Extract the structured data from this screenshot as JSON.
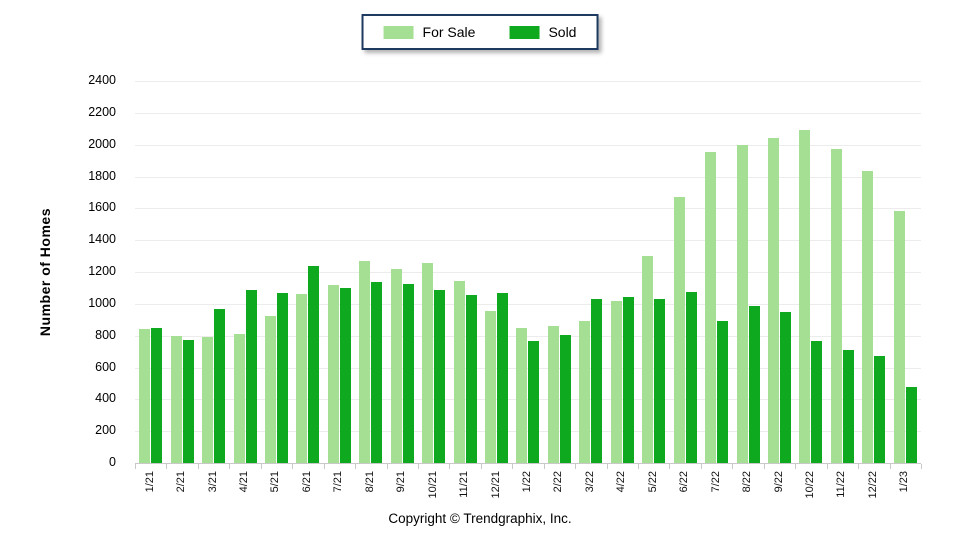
{
  "legend": {
    "items": [
      {
        "label": "For Sale",
        "color": "#a5df94"
      },
      {
        "label": "Sold",
        "color": "#0ea91e"
      }
    ]
  },
  "footer": {
    "copyright": "Copyright © Trendgraphix, Inc."
  },
  "colors": {
    "for_sale": "#a5df94",
    "sold": "#0ea91e",
    "gridline": "#ececec",
    "axis_line": "#c9c9c9",
    "legend_border": "#1f3a60"
  },
  "chart_data": {
    "type": "bar",
    "title": "",
    "xlabel": "",
    "ylabel": "Number of Homes",
    "ylim": [
      0,
      2400
    ],
    "y_tick_step": 200,
    "y_ticks": [
      0,
      200,
      400,
      600,
      800,
      1000,
      1200,
      1400,
      1600,
      1800,
      2000,
      2200,
      2400
    ],
    "grid": true,
    "legend_position": "top-center",
    "categories": [
      "1/21",
      "2/21",
      "3/21",
      "4/21",
      "5/21",
      "6/21",
      "7/21",
      "8/21",
      "9/21",
      "10/21",
      "11/21",
      "12/21",
      "1/22",
      "2/22",
      "3/22",
      "4/22",
      "5/22",
      "6/22",
      "7/22",
      "8/22",
      "9/22",
      "10/22",
      "11/22",
      "12/22",
      "1/23"
    ],
    "series": [
      {
        "name": "For Sale",
        "color": "#a5df94",
        "values": [
          845,
          795,
          790,
          810,
          925,
          1060,
          1120,
          1270,
          1220,
          1255,
          1145,
          955,
          850,
          860,
          895,
          1015,
          1300,
          1670,
          1955,
          1995,
          2045,
          2095,
          1975,
          1835,
          1585
        ]
      },
      {
        "name": "Sold",
        "color": "#0ea91e",
        "values": [
          850,
          770,
          965,
          1085,
          1065,
          1235,
          1100,
          1140,
          1125,
          1090,
          1055,
          1070,
          765,
          805,
          1030,
          1045,
          1030,
          1075,
          890,
          985,
          950,
          765,
          710,
          670,
          475
        ]
      }
    ]
  }
}
